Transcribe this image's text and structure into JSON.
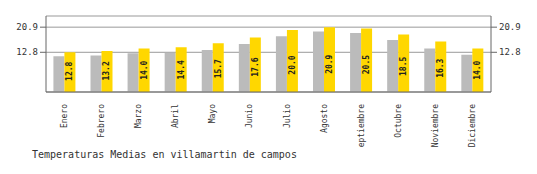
{
  "chart_data": {
    "type": "bar",
    "title": "Temperaturas Medias en villamartin de campos",
    "categories": [
      "Enero",
      "Febrero",
      "Marzo",
      "Abril",
      "Mayo",
      "Junio",
      "Julio",
      "Agosto",
      "Septiembre",
      "Octubre",
      "Noviembre",
      "Diciembre"
    ],
    "series": [
      {
        "color": "#BBBBBB",
        "values": [
          11.5,
          11.8,
          12.5,
          12.6,
          13.5,
          15.5,
          18.0,
          19.5,
          19.0,
          16.8,
          14.0,
          12.0
        ]
      },
      {
        "color": "#FFD700",
        "values": [
          12.8,
          13.2,
          14.0,
          14.4,
          15.7,
          17.6,
          20.0,
          20.9,
          20.5,
          18.5,
          16.3,
          14.0
        ],
        "data_labels": true,
        "value_labels": [
          "12.8",
          "13.2",
          "14.0",
          "14.4",
          "15.7",
          "17.6",
          "20.0",
          "20.9",
          "20.5",
          "18.5",
          "16.3",
          "14.0"
        ]
      }
    ],
    "ylim": [
      0,
      24.5
    ],
    "yticks": [
      12.8,
      20.9
    ],
    "grid": true
  }
}
